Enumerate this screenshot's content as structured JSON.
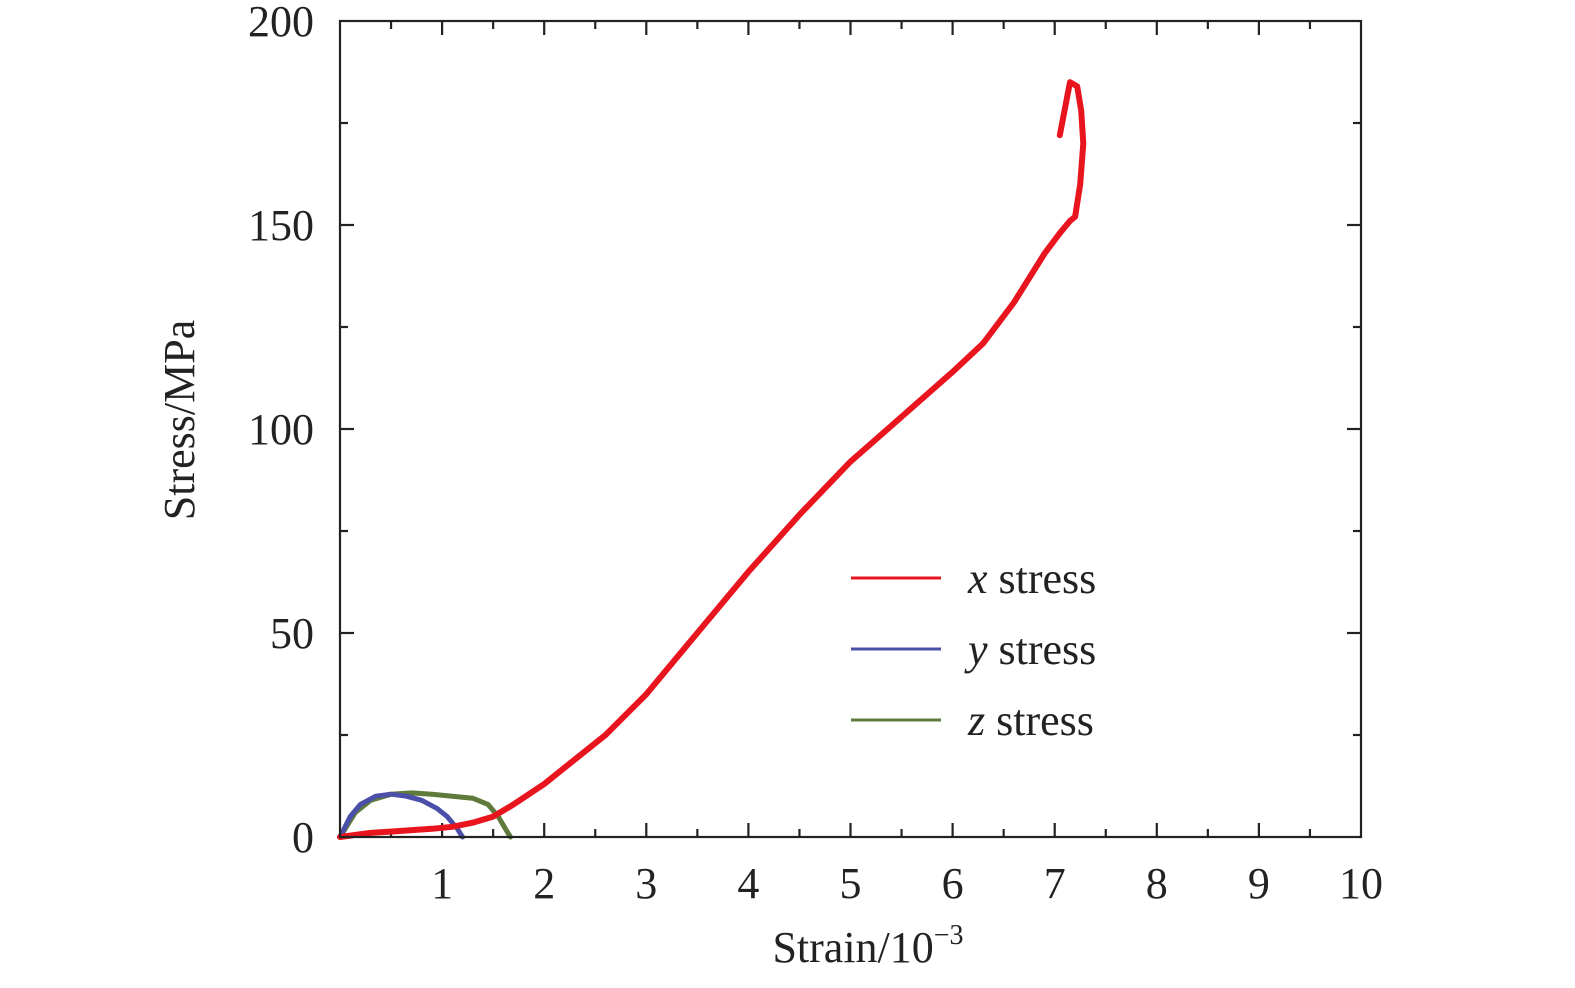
{
  "chart_data": {
    "type": "line",
    "title": "",
    "xlabel": "Strain/10",
    "xlabel_exponent": "−3",
    "ylabel": "Stress/MPa",
    "xlim": [
      0,
      10
    ],
    "ylim": [
      0,
      200
    ],
    "x_ticks": [
      1,
      2,
      3,
      4,
      5,
      6,
      7,
      8,
      9,
      10
    ],
    "y_ticks": [
      0,
      50,
      100,
      150,
      200
    ],
    "x_tick_labels": [
      "1",
      "2",
      "3",
      "4",
      "5",
      "6",
      "7",
      "8",
      "9",
      "10"
    ],
    "y_tick_labels": [
      "0",
      "50",
      "100",
      "150",
      "200"
    ],
    "grid": false,
    "legend_position": "center-right",
    "series": [
      {
        "name": "x stress",
        "var": "x",
        "label_rest": " stress",
        "color": "#e8141e",
        "x": [
          0.0,
          0.3,
          0.6,
          0.9,
          1.1,
          1.3,
          1.5,
          1.7,
          2.0,
          2.3,
          2.6,
          3.0,
          3.5,
          4.0,
          4.5,
          5.0,
          5.5,
          6.0,
          6.3,
          6.6,
          6.9,
          7.05,
          7.15,
          7.2,
          7.25,
          7.28,
          7.26,
          7.22,
          7.15,
          7.05
        ],
        "y": [
          0,
          1,
          1.5,
          2,
          2.5,
          3.5,
          5,
          8,
          13,
          19,
          25,
          35,
          50,
          65,
          79,
          92,
          103,
          114,
          121,
          131,
          143,
          148,
          151,
          152,
          160,
          170,
          178,
          184,
          185,
          172
        ]
      },
      {
        "name": "y stress",
        "var": "y",
        "label_rest": " stress",
        "color": "#4b4fa8",
        "x": [
          0.0,
          0.1,
          0.2,
          0.35,
          0.5,
          0.65,
          0.8,
          0.95,
          1.05,
          1.15,
          1.2
        ],
        "y": [
          0,
          5,
          8,
          10,
          10.5,
          10,
          9,
          7,
          5,
          2,
          0
        ]
      },
      {
        "name": "z stress",
        "var": "z",
        "label_rest": " stress",
        "color": "#5f7a3a",
        "x": [
          0.0,
          0.15,
          0.3,
          0.5,
          0.7,
          0.9,
          1.1,
          1.3,
          1.45,
          1.55,
          1.62,
          1.67
        ],
        "y": [
          0,
          6,
          9,
          10.5,
          10.8,
          10.5,
          10,
          9.5,
          8,
          5,
          2,
          0
        ]
      }
    ]
  }
}
